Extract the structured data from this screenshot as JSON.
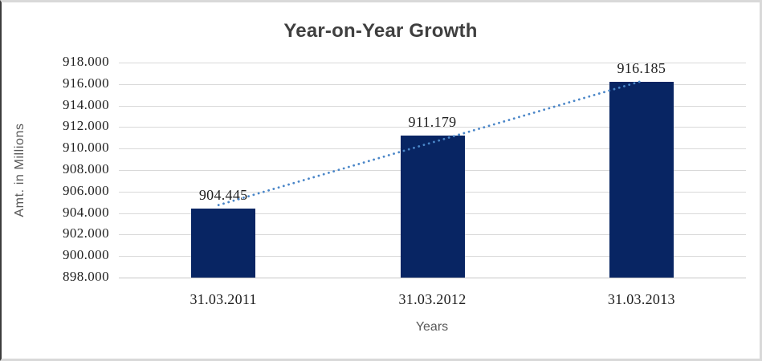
{
  "chart_data": {
    "type": "bar",
    "title": "Year-on-Year Growth",
    "xlabel": "Years",
    "ylabel": "Amt. in Millions",
    "categories": [
      "31.03.2011",
      "31.03.2012",
      "31.03.2013"
    ],
    "values": [
      904.445,
      911.179,
      916.185
    ],
    "data_labels": [
      "904.445",
      "911.179",
      "916.185"
    ],
    "ylim": [
      898,
      918
    ],
    "ytick_step": 2,
    "ytick_labels": [
      "918.000",
      "916.000",
      "914.000",
      "912.000",
      "910.000",
      "908.000",
      "906.000",
      "904.000",
      "902.000",
      "900.000",
      "898.000"
    ],
    "grid": true,
    "legend": "none",
    "trendline": {
      "style": "dotted",
      "from_value": 904.445,
      "to_value": 916.185,
      "color": "#4a86c8"
    },
    "colors": {
      "bar": "#082563",
      "gridline": "#d9d9d9",
      "title": "#3f3f3f",
      "axis_title": "#595959",
      "tick_label": "#1f1f1f",
      "trendline": "#4a86c8"
    }
  }
}
